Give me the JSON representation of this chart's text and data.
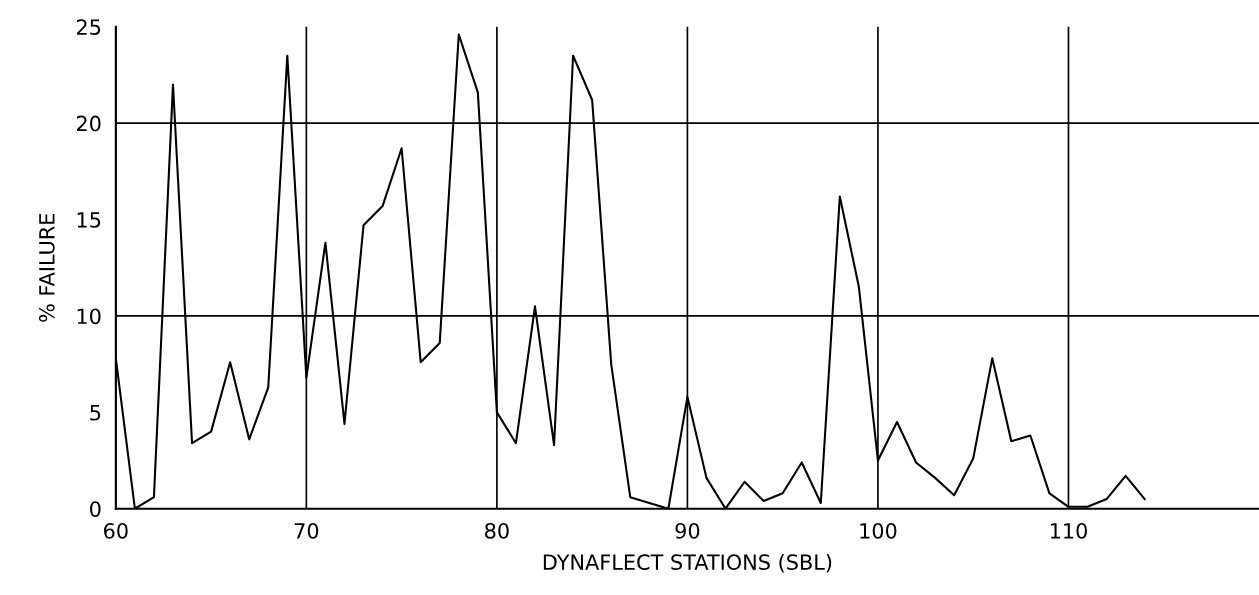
{
  "chart_data": {
    "type": "line",
    "xlabel": "DYNAFLECT STATIONS (SBL)",
    "ylabel": "% FAILURE",
    "x": [
      60,
      61,
      62,
      63,
      64,
      65,
      66,
      67,
      68,
      69,
      70,
      71,
      72,
      73,
      74,
      75,
      76,
      77,
      78,
      79,
      80,
      81,
      82,
      83,
      84,
      85,
      86,
      87,
      88,
      89,
      90,
      91,
      92,
      93,
      94,
      95,
      96,
      97,
      98,
      99,
      100,
      101,
      102,
      103,
      104,
      105,
      106,
      107,
      108,
      109,
      110,
      111,
      112,
      113,
      114
    ],
    "series": [
      {
        "color": "#000000",
        "values": [
          7.8,
          0,
          0.6,
          22,
          3.4,
          4,
          7.6,
          3.6,
          6.3,
          23.5,
          6.8,
          13.8,
          4.4,
          14.7,
          15.7,
          18.7,
          7.6,
          8.6,
          24.6,
          21.6,
          5,
          3.4,
          10.5,
          3.3,
          23.5,
          21.2,
          7.5,
          0.6,
          0.3,
          0,
          5.8,
          1.6,
          0,
          1.4,
          0.4,
          0.8,
          2.4,
          0.3,
          16.2,
          11.5,
          2.5,
          4.5,
          2.4,
          1.6,
          0.7,
          2.6,
          7.8,
          3.5,
          3.8,
          0.8,
          0.1,
          0.1,
          0.5,
          1.7,
          0.5
        ]
      }
    ],
    "xlim": [
      60,
      120
    ],
    "ylim": [
      0,
      25
    ],
    "xticks": [
      60,
      70,
      80,
      90,
      100,
      110
    ],
    "yticks": [
      0,
      5,
      10,
      15,
      20,
      25
    ],
    "grid": "x",
    "marker": "none",
    "line_style": "solid",
    "ref_lines": [
      {
        "axis": "y",
        "value": 10,
        "color": "#000000"
      },
      {
        "axis": "y",
        "value": 20,
        "color": "#000000"
      }
    ]
  }
}
